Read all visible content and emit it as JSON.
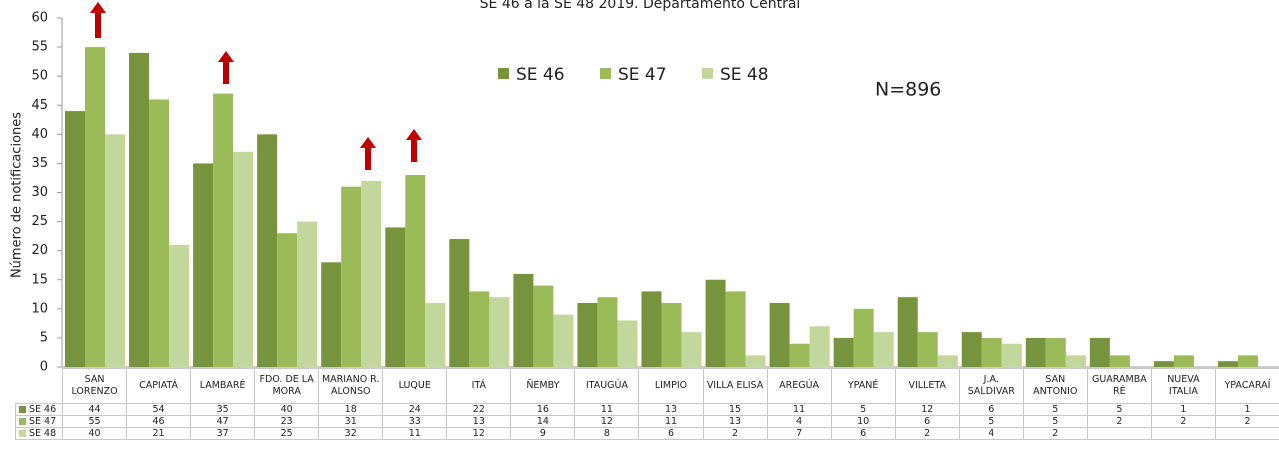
{
  "chart_data": {
    "type": "bar",
    "title": "SE 46 a la SE 48 2019. Departamento Central",
    "y_label": "Número de notificaciones",
    "annotation": "N=896",
    "categories": [
      "SAN LORENZO",
      "CAPIATÁ",
      "LAMBARÉ",
      "FDO. DE LA MORA",
      "MARIANO R. ALONSO",
      "LUQUE",
      "ITÁ",
      "ÑEMBY",
      "ITAUGÚA",
      "LIMPIO",
      "VILLA ELISA",
      "AREGÚA",
      "YPANÉ",
      "VILLETA",
      "J.A. SALDIVAR",
      "SAN ANTONIO",
      "GUARAMBARÉ",
      "NUEVA ITALIA",
      "YPACARAÍ"
    ],
    "series": [
      {
        "name": "SE 46",
        "color": "#77933c",
        "values": [
          44,
          54,
          35,
          40,
          18,
          24,
          22,
          16,
          11,
          13,
          15,
          11,
          5,
          12,
          6,
          5,
          5,
          1,
          1
        ]
      },
      {
        "name": "SE 47",
        "color": "#9bbb59",
        "values": [
          55,
          46,
          47,
          23,
          31,
          33,
          13,
          14,
          12,
          11,
          13,
          4,
          10,
          6,
          5,
          5,
          2,
          2,
          2
        ]
      },
      {
        "name": "SE 48",
        "color": "#c3d69b",
        "values": [
          40,
          21,
          37,
          25,
          32,
          11,
          12,
          9,
          8,
          6,
          2,
          7,
          6,
          2,
          4,
          2,
          null,
          null,
          null
        ]
      }
    ],
    "ylim": [
      0,
      60
    ],
    "yticks": [
      0,
      5,
      10,
      15,
      20,
      25,
      30,
      35,
      40,
      45,
      50,
      55,
      60
    ],
    "grid": false,
    "legend": "top"
  }
}
